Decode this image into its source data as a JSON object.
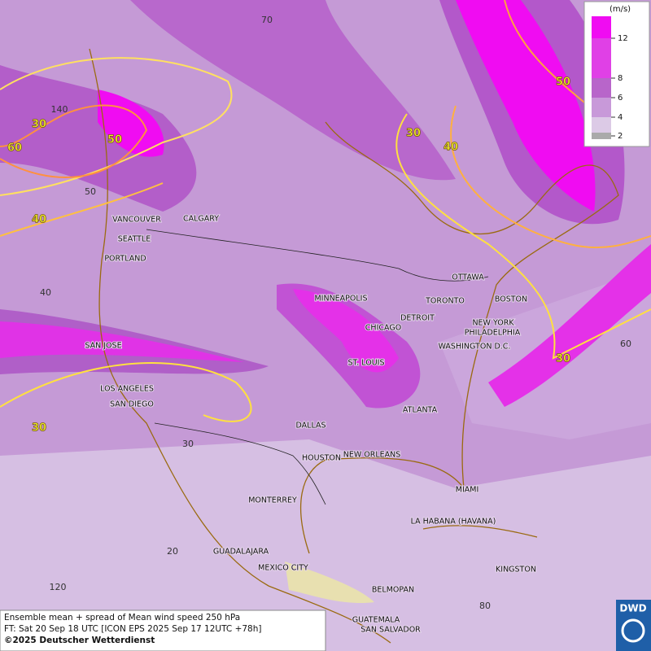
{
  "legend": {
    "unit": "(m/s)",
    "ticks": [
      2,
      4,
      6,
      8,
      12
    ]
  },
  "cities": [
    "VANCOUVER",
    "CALGARY",
    "SEATTLE",
    "PORTLAND",
    "MINNEAPOLIS",
    "TORONTO",
    "OTTAWA",
    "BOSTON",
    "DETROIT",
    "CHICAGO",
    "NEW YORK",
    "PHILADELPHIA",
    "WASHINGTON D.C.",
    "SAN JOSE",
    "ST. LOUIS",
    "LOS ANGELES",
    "SAN DIEGO",
    "ATLANTA",
    "DALLAS",
    "HOUSTON",
    "NEW ORLEANS",
    "MIAMI",
    "MONTERREY",
    "LA HABANA (HAVANA)",
    "GUADALAJARA",
    "MEXICO CITY",
    "KINGSTON",
    "BELMOPAN",
    "GUATEMALA",
    "SAN SALVADOR"
  ],
  "contour_labels": [
    "30",
    "60",
    "50",
    "40",
    "30",
    "40",
    "50",
    "30",
    "30"
  ],
  "grid_labels": [
    "70",
    "140",
    "50",
    "40",
    "60",
    "30",
    "20",
    "120",
    "80"
  ],
  "caption": [
    "Ensemble mean + spread of Mean wind speed 250 hPa",
    "FT: Sat 20 Sep 18 UTC [ICON EPS 2025 Sep 17 12UTC +78h]",
    "©2025 Deutscher Wetterdienst"
  ],
  "logo": "DWD"
}
